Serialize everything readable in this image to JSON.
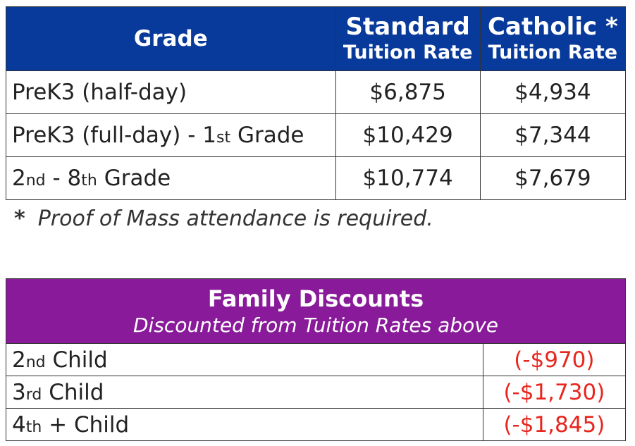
{
  "tuition": {
    "headers": {
      "grade": "Grade",
      "standard_line1": "Standard",
      "standard_line2": "Tuition Rate",
      "catholic_line1": "Catholic *",
      "catholic_line2": "Tuition Rate"
    },
    "rows": [
      {
        "grade_main": "PreK3 (half-day)",
        "grade_ord": "",
        "grade_tail": "",
        "grade_ord2": "",
        "grade_tail2": "",
        "standard": "$6,875",
        "catholic": "$4,934"
      },
      {
        "grade_main": "PreK3 (full-day) - 1",
        "grade_ord": "st",
        "grade_tail": " Grade",
        "grade_ord2": "",
        "grade_tail2": "",
        "standard": "$10,429",
        "catholic": "$7,344"
      },
      {
        "grade_main": "2",
        "grade_ord": "nd",
        "grade_tail": " - 8",
        "grade_ord2": "th",
        "grade_tail2": " Grade",
        "standard": "$10,774",
        "catholic": "$7,679"
      }
    ],
    "footnote_star": "*",
    "footnote_text": "Proof of Mass attendance is required."
  },
  "discounts": {
    "title": "Family Discounts",
    "subtitle": "Discounted from Tuition Rates above",
    "rows": [
      {
        "num": "2",
        "ord": "nd",
        "label": " Child",
        "amount": "(-$970)"
      },
      {
        "num": "3",
        "ord": "rd",
        "label": " Child",
        "amount": "(-$1,730)"
      },
      {
        "num": "4",
        "ord": "th",
        "label": " + Child",
        "amount": "(-$1,845)"
      }
    ]
  },
  "colors": {
    "tuition_header_bg": "#073a9a",
    "discount_header_bg": "#891a9a",
    "discount_amount": "#e8261e"
  }
}
